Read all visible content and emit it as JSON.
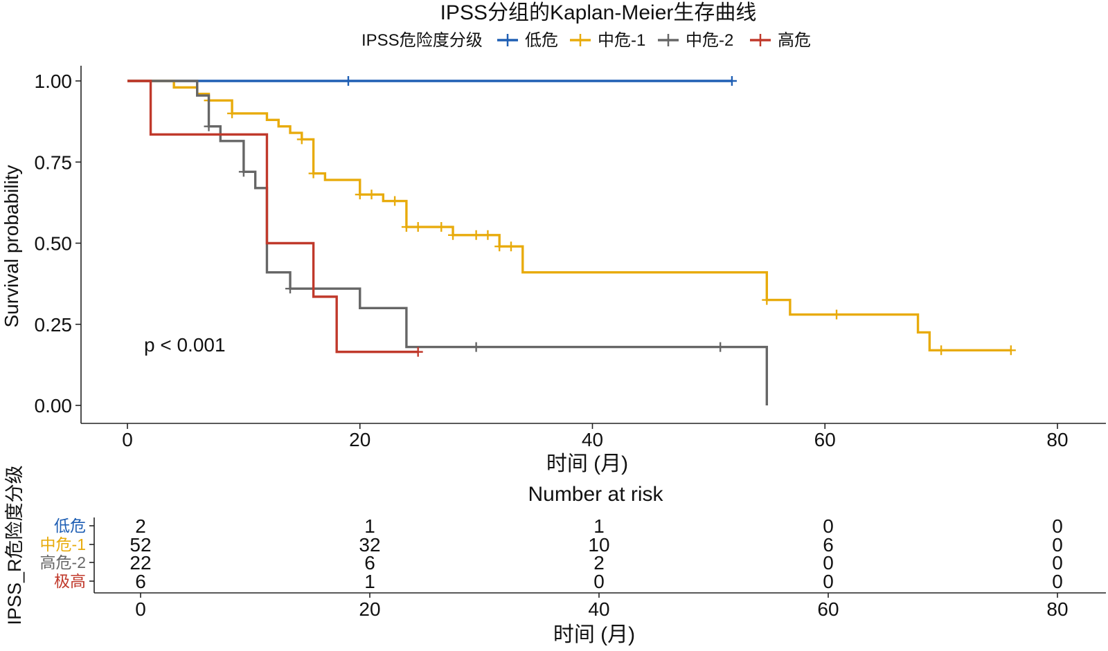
{
  "chart_data": [
    {
      "type": "line",
      "subtype": "kaplan-meier",
      "title": "IPSS分组的Kaplan-Meier生存曲线",
      "legend": {
        "title": "IPSS危险度分级",
        "position": "top",
        "entries": [
          "低危",
          "中危-1",
          "中危-2",
          "高危"
        ]
      },
      "xlabel": "时间 (月)",
      "ylabel": "Survival probability",
      "xlim": [
        0,
        80
      ],
      "ylim": [
        0,
        1
      ],
      "x_ticks": [
        0,
        20,
        40,
        60,
        80
      ],
      "x_tick_labels": [
        "0",
        "20",
        "40",
        "60",
        "80"
      ],
      "y_ticks": [
        0,
        0.25,
        0.5,
        0.75,
        1.0
      ],
      "y_tick_labels": [
        "0.00",
        "0.25",
        "0.50",
        "0.75",
        "1.00"
      ],
      "annotation": "p < 0.001",
      "series": [
        {
          "name": "低危",
          "color": "#1f5fb4",
          "steps": [
            [
              0,
              1.0
            ],
            [
              52,
              1.0
            ]
          ],
          "censor": [
            [
              19,
              1.0
            ],
            [
              52,
              1.0
            ]
          ]
        },
        {
          "name": "中危-1",
          "color": "#e8ab0c",
          "steps": [
            [
              0,
              1.0
            ],
            [
              4,
              0.98
            ],
            [
              6,
              0.96
            ],
            [
              7,
              0.94
            ],
            [
              9,
              0.9
            ],
            [
              12,
              0.88
            ],
            [
              13,
              0.86
            ],
            [
              14,
              0.84
            ],
            [
              15,
              0.82
            ],
            [
              16,
              0.715
            ],
            [
              17,
              0.695
            ],
            [
              20,
              0.65
            ],
            [
              22,
              0.63
            ],
            [
              24,
              0.55
            ],
            [
              28,
              0.525
            ],
            [
              32,
              0.49
            ],
            [
              34,
              0.41
            ],
            [
              55,
              0.325
            ],
            [
              57,
              0.28
            ],
            [
              68,
              0.225
            ],
            [
              69,
              0.17
            ],
            [
              76,
              0.17
            ]
          ],
          "censor": [
            [
              7,
              0.94
            ],
            [
              9,
              0.9
            ],
            [
              15,
              0.82
            ],
            [
              16,
              0.715
            ],
            [
              20,
              0.65
            ],
            [
              21,
              0.65
            ],
            [
              23,
              0.63
            ],
            [
              24,
              0.55
            ],
            [
              25,
              0.55
            ],
            [
              27,
              0.55
            ],
            [
              28,
              0.525
            ],
            [
              30,
              0.525
            ],
            [
              31,
              0.525
            ],
            [
              32,
              0.49
            ],
            [
              33,
              0.49
            ],
            [
              55,
              0.325
            ],
            [
              61,
              0.28
            ],
            [
              70,
              0.17
            ],
            [
              76,
              0.17
            ]
          ]
        },
        {
          "name": "中危-2",
          "color": "#666666",
          "steps": [
            [
              0,
              1.0
            ],
            [
              6,
              0.955
            ],
            [
              7,
              0.86
            ],
            [
              8,
              0.815
            ],
            [
              10,
              0.72
            ],
            [
              11,
              0.67
            ],
            [
              12,
              0.41
            ],
            [
              14,
              0.36
            ],
            [
              20,
              0.3
            ],
            [
              24,
              0.18
            ],
            [
              55,
              0.18
            ],
            [
              55,
              0.0
            ]
          ],
          "censor": [
            [
              7,
              0.86
            ],
            [
              10,
              0.72
            ],
            [
              14,
              0.36
            ],
            [
              30,
              0.18
            ],
            [
              51,
              0.18
            ]
          ]
        },
        {
          "name": "高危",
          "color": "#c0392b",
          "steps": [
            [
              0,
              1.0
            ],
            [
              2,
              0.835
            ],
            [
              12,
              0.5
            ],
            [
              16,
              0.335
            ],
            [
              18,
              0.165
            ],
            [
              25,
              0.165
            ]
          ],
          "censor": [
            [
              25,
              0.165
            ]
          ]
        }
      ]
    },
    {
      "type": "table",
      "title": "Number at risk",
      "ylabel": "IPSS_R危险度分级",
      "xlabel": "时间 (月)",
      "x_ticks": [
        0,
        20,
        40,
        60,
        80
      ],
      "x_tick_labels": [
        "0",
        "20",
        "40",
        "60",
        "80"
      ],
      "rows": [
        {
          "label": "低危",
          "color": "#1f5fb4",
          "values": [
            "2",
            "1",
            "1",
            "0",
            "0"
          ]
        },
        {
          "label": "中危-1",
          "color": "#e8ab0c",
          "values": [
            "52",
            "32",
            "10",
            "6",
            "0"
          ]
        },
        {
          "label": "高危-2",
          "color": "#666666",
          "values": [
            "22",
            "6",
            "2",
            "0",
            "0"
          ]
        },
        {
          "label": "极高",
          "color": "#c0392b",
          "values": [
            "6",
            "1",
            "0",
            "0",
            "0"
          ]
        }
      ]
    }
  ]
}
